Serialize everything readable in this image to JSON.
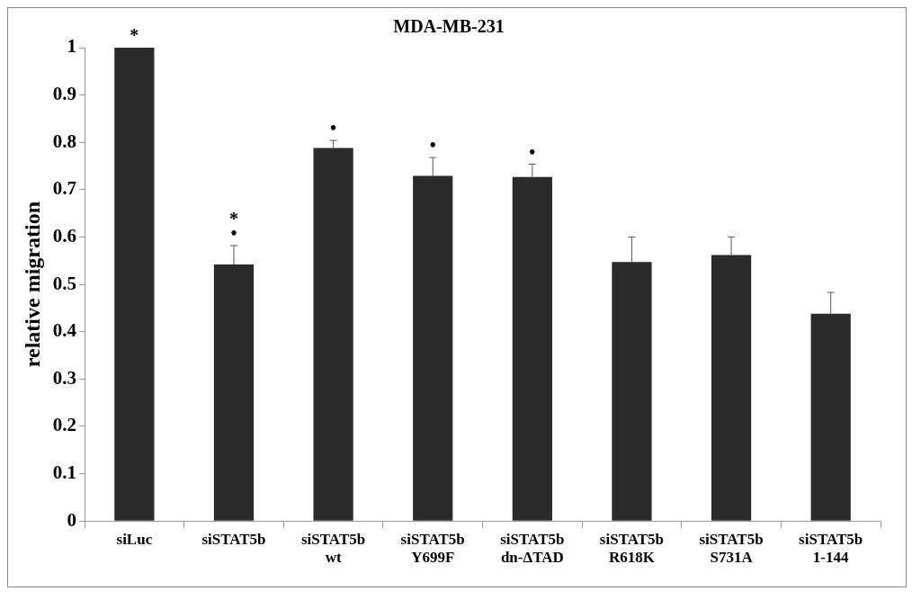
{
  "chart_data": {
    "type": "bar",
    "title": "MDA-MB-231",
    "ylabel": "relative migration",
    "categories": [
      "siLuc",
      "siSTAT5b",
      "siSTAT5b\nwt",
      "siSTAT5b\nY699F",
      "siSTAT5b\ndn-ΔTAD",
      "siSTAT5b\nR618K",
      "siSTAT5b\nS731A",
      "siSTAT5b\n1-144"
    ],
    "values": [
      1.0,
      0.542,
      0.788,
      0.729,
      0.727,
      0.547,
      0.562,
      0.438
    ],
    "errors": [
      null,
      [
        0.542,
        0.582
      ],
      [
        0.788,
        0.804
      ],
      [
        0.729,
        0.768
      ],
      [
        0.727,
        0.754
      ],
      [
        0.547,
        0.6
      ],
      [
        0.562,
        0.6
      ],
      [
        0.438,
        0.483
      ]
    ],
    "color": "#2b2b2b",
    "ylim": [
      0,
      1
    ],
    "yticks": [
      0,
      0.1,
      0.2,
      0.3,
      0.4,
      0.5,
      0.6,
      0.7,
      0.8,
      0.9,
      1
    ],
    "grid": false,
    "legend": false,
    "annotations": [
      {
        "text": "*",
        "x": "siLuc",
        "y": 1.0
      },
      {
        "text": "•",
        "x": "siSTAT5b",
        "y": 0.582
      },
      {
        "text": "*",
        "x": "siSTAT5b",
        "y": 0.582
      },
      {
        "text": "•",
        "x": "siSTAT5b\nwt",
        "y": 0.804
      },
      {
        "text": "•",
        "x": "siSTAT5b\nY699F",
        "y": 0.768
      },
      {
        "text": "•",
        "x": "siSTAT5b\ndn-ΔTAD",
        "y": 0.754
      }
    ]
  }
}
